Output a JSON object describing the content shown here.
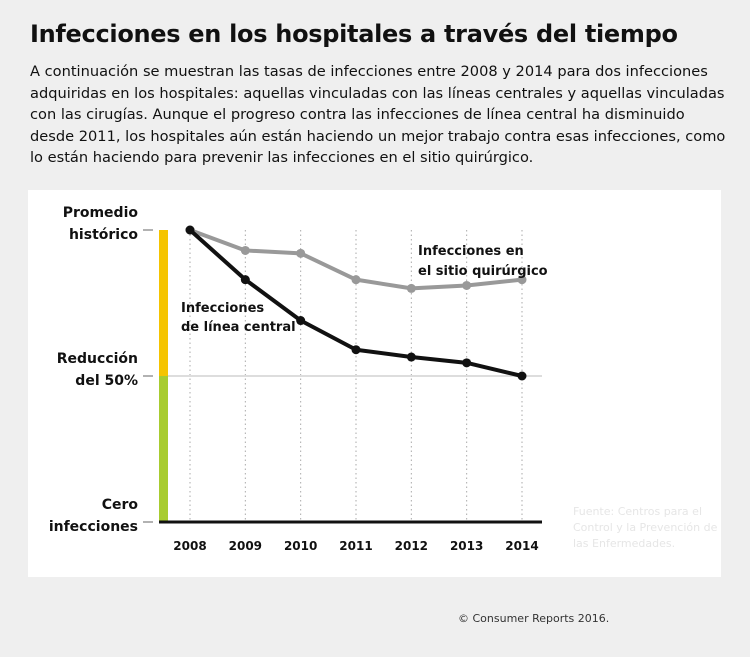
{
  "title": "Infecciones en los hospitales a través del tiempo",
  "description": "A continuación se muestran las tasas de infecciones entre 2008 y 2014 para dos infecciones adquiridas en los hospitales: aquellas vinculadas con las líneas centrales y aquellas vinculadas con las cirugías. Aunque el progreso contra las infecciones de línea central ha disminuido desde 2011, los hospitales aún están haciendo un mejor trabajo contra esas infecciones, como lo están haciendo para prevenir las infecciones en el sitio quirúrgico.",
  "source": "Fuente: Centros para el Control y la Prevención de las Enfermedades.",
  "credit": "© Consumer Reports 2016.",
  "chart_data": {
    "type": "line",
    "x": [
      2008,
      2009,
      2010,
      2011,
      2012,
      2013,
      2014
    ],
    "tick_labels": [
      "2008",
      "2009",
      "2010",
      "2011",
      "2012",
      "2013",
      "2014"
    ],
    "ylim": [
      0,
      1
    ],
    "y_labels": [
      {
        "value": 1.0,
        "line1": "Promedio",
        "line2": "histórico"
      },
      {
        "value": 0.5,
        "line1": "Reducción",
        "line2": "del 50%"
      },
      {
        "value": 0,
        "line1": "Cero",
        "line2": "infecciones"
      }
    ],
    "series": [
      {
        "name": "Infecciones de línea central",
        "label1": "Infecciones",
        "label2": "de línea central",
        "color": "#111111",
        "values": [
          1.0,
          0.83,
          0.69,
          0.59,
          0.565,
          0.545,
          0.5
        ]
      },
      {
        "name": "Infecciones en el sitio quirúrgico",
        "label1": "Infecciones en",
        "label2": "el sitio quirúrgico",
        "color": "#999999",
        "values": [
          1.0,
          0.93,
          0.92,
          0.83,
          0.8,
          0.81,
          0.83
        ]
      }
    ],
    "band_colors": {
      "upper": "#f5c400",
      "lower": "#a8cc30"
    },
    "grid": "vertical dotted"
  }
}
